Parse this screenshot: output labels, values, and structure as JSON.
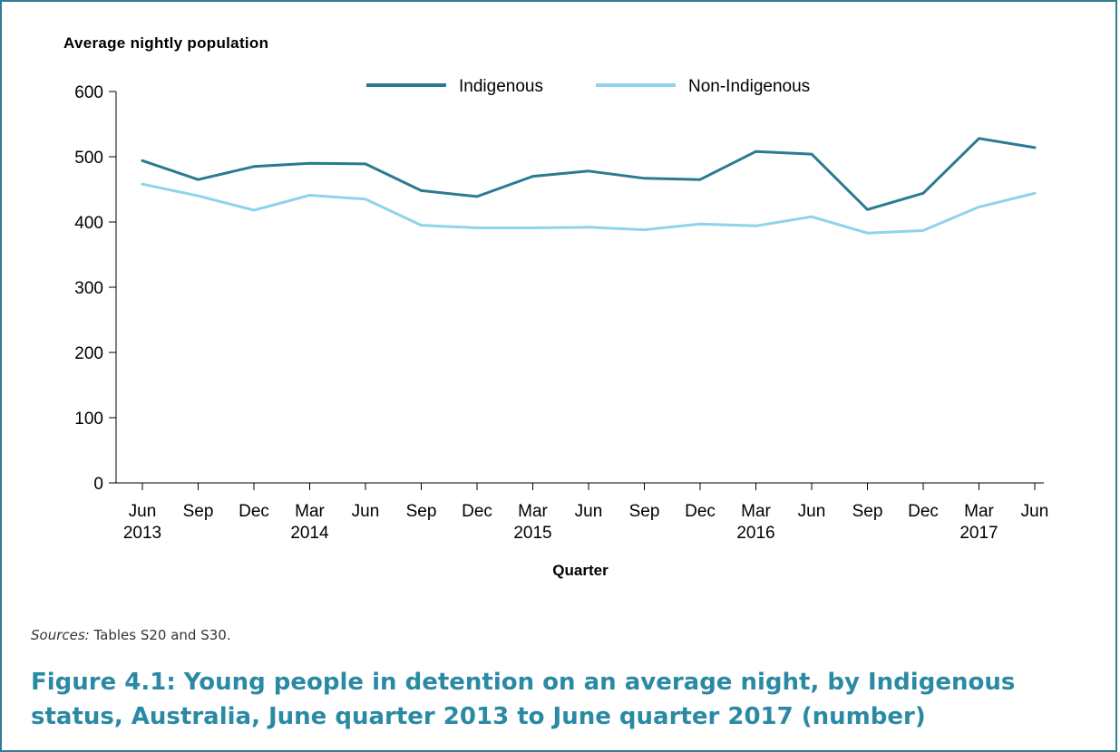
{
  "chart_data": {
    "type": "line",
    "ylabel": "Average nightly population",
    "xlabel": "Quarter",
    "ylim": [
      0,
      600
    ],
    "yticks": [
      0,
      100,
      200,
      300,
      400,
      500,
      600
    ],
    "categories": [
      {
        "line1": "Jun",
        "line2": "2013"
      },
      {
        "line1": "Sep",
        "line2": ""
      },
      {
        "line1": "Dec",
        "line2": ""
      },
      {
        "line1": "Mar",
        "line2": "2014"
      },
      {
        "line1": "Jun",
        "line2": ""
      },
      {
        "line1": "Sep",
        "line2": ""
      },
      {
        "line1": "Dec",
        "line2": ""
      },
      {
        "line1": "Mar",
        "line2": "2015"
      },
      {
        "line1": "Jun",
        "line2": ""
      },
      {
        "line1": "Sep",
        "line2": ""
      },
      {
        "line1": "Dec",
        "line2": ""
      },
      {
        "line1": "Mar",
        "line2": "2016"
      },
      {
        "line1": "Jun",
        "line2": ""
      },
      {
        "line1": "Sep",
        "line2": ""
      },
      {
        "line1": "Dec",
        "line2": ""
      },
      {
        "line1": "Mar",
        "line2": "2017"
      },
      {
        "line1": "Jun",
        "line2": ""
      }
    ],
    "series": [
      {
        "name": "Indigenous",
        "color": "#2b7a91",
        "values": [
          494,
          465,
          485,
          490,
          489,
          448,
          439,
          470,
          478,
          467,
          465,
          508,
          504,
          419,
          444,
          528,
          514
        ]
      },
      {
        "name": "Non-Indigenous",
        "color": "#8ed3ea",
        "values": [
          458,
          440,
          418,
          441,
          435,
          395,
          391,
          391,
          392,
          388,
          397,
          394,
          408,
          383,
          387,
          423,
          444
        ]
      }
    ],
    "legend_position": "top",
    "grid": false
  },
  "source_label": "Sources:",
  "source_text": " Tables S20 and S30.",
  "caption": "Figure 4.1: Young people in detention on an average night, by Indigenous status, Australia, June quarter 2013 to June quarter 2017 (number)"
}
